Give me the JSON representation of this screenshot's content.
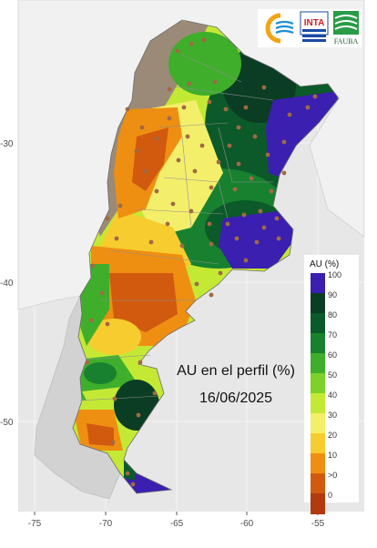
{
  "map": {
    "title_line1": "AU en el perfil (%)",
    "title_line2": "16/06/2025",
    "x_ticks": [
      "-75",
      "-70",
      "-65",
      "-60",
      "-55"
    ],
    "y_ticks": [
      "-30",
      "-40",
      "-50"
    ]
  },
  "legend": {
    "title": "AU (%)",
    "labels": [
      "100",
      "90",
      "80",
      "70",
      "60",
      "50",
      "40",
      "30",
      "20",
      "10",
      ">0",
      "0"
    ],
    "colors": [
      "#3b1fb0",
      "#0b3d24",
      "#0c5a2a",
      "#18812f",
      "#3fae2b",
      "#7cd22a",
      "#c4e935",
      "#f4ef6a",
      "#f7cc2e",
      "#ee8f12",
      "#d15a0f",
      "#b23a0f"
    ]
  },
  "logos": [
    {
      "name": "uba-logo",
      "text": ""
    },
    {
      "name": "inta-logo",
      "text": "INTA"
    },
    {
      "name": "fauba-logo",
      "text": "FAUBA"
    }
  ],
  "colors": {
    "background": "#e7e7e7",
    "land_gray": "#d6d6d6",
    "neighbor_gray": "#efefef",
    "arid": "#9b8a77",
    "dot": "#a06a44"
  }
}
